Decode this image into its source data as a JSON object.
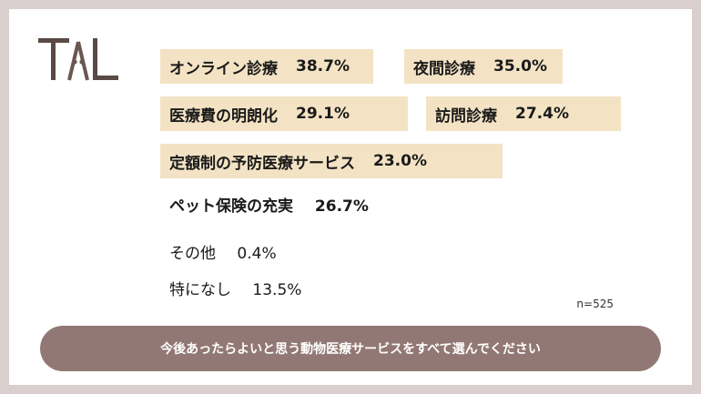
{
  "logo": {
    "name": "TAL-logo",
    "text": "TAL"
  },
  "highlighted_items": [
    {
      "label": "オンライン診療",
      "pct": "38.7%"
    },
    {
      "label": "夜間診療",
      "pct": "35.0%"
    },
    {
      "label": "医療費の明朗化",
      "pct": "29.1%"
    },
    {
      "label": "訪問診療",
      "pct": "27.4%"
    },
    {
      "label": "定額制の予防医療サービス",
      "pct": "23.0%"
    }
  ],
  "other_items": [
    {
      "label": "ペット保険の充実",
      "pct": "26.7%"
    },
    {
      "label": "その他",
      "pct": "0.4%"
    },
    {
      "label": "特になし",
      "pct": "13.5%"
    }
  ],
  "sample_size": "n=525",
  "question": "今後あったらよいと思う動物医療サービスをすべて選んでください",
  "colors": {
    "outer_bg": "#d8cfce",
    "card_bg": "#ffffff",
    "chip_bg": "#f3e3c4",
    "footer_bg": "#927874",
    "logo_dark": "#5a4a45",
    "logo_accent": "#7a5f5a"
  }
}
